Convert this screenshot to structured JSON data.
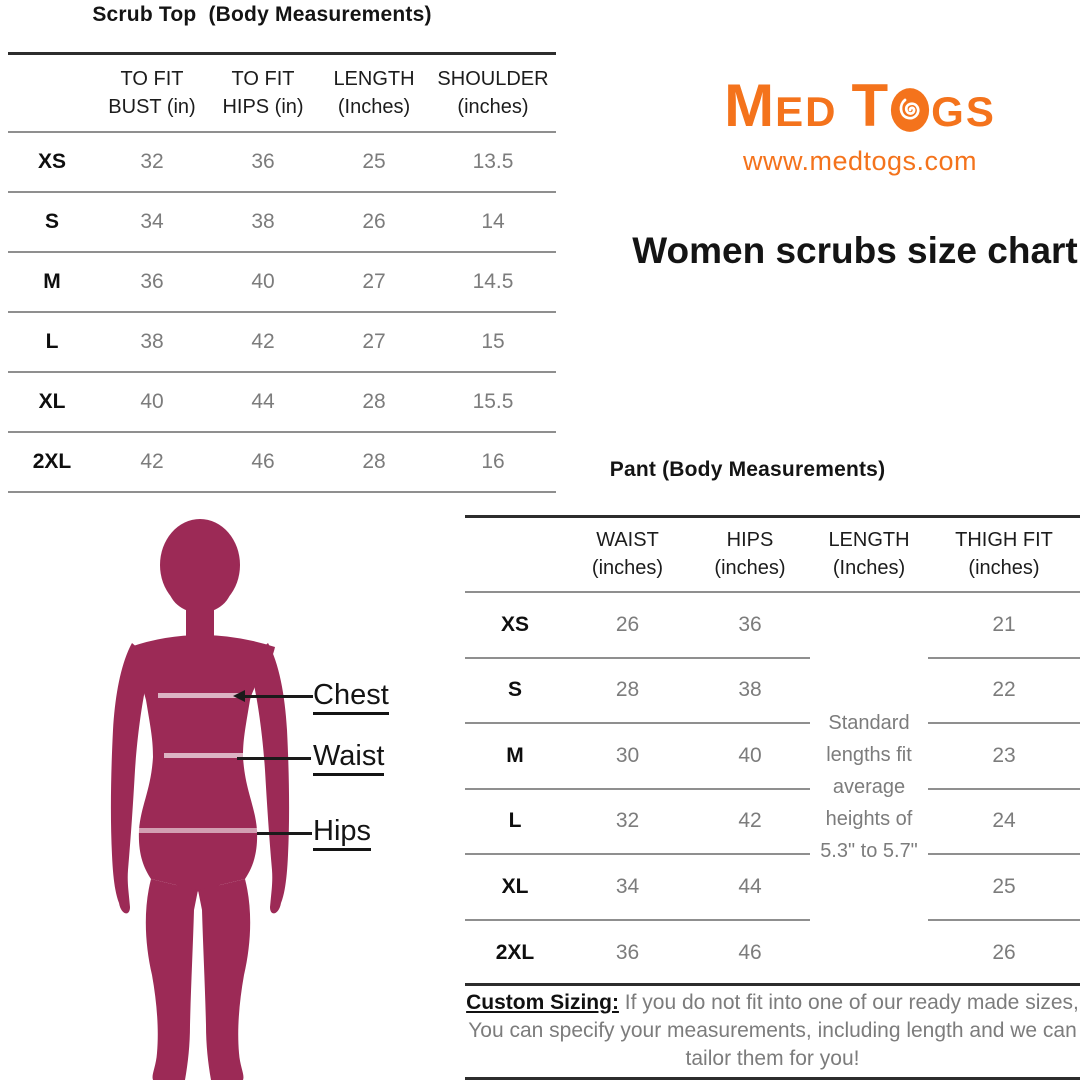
{
  "brand": {
    "m": "M",
    "ed": "ED",
    "t": "T",
    "gs": "GS",
    "url": "www.medtogs.com",
    "orange": "#F4731C"
  },
  "heading": "Women scrubs size chart",
  "scrub_top": {
    "title": "Scrub Top  (Body Measurements)",
    "headers": [
      [
        "TO FIT",
        "BUST (in)"
      ],
      [
        "TO FIT",
        "HIPS (in)"
      ],
      [
        "LENGTH",
        "(Inches)"
      ],
      [
        "SHOULDER",
        "(inches)"
      ]
    ],
    "rows": [
      {
        "size": "XS",
        "values": [
          "32",
          "36",
          "25",
          "13.5"
        ]
      },
      {
        "size": "S",
        "values": [
          "34",
          "38",
          "26",
          "14"
        ]
      },
      {
        "size": "M",
        "values": [
          "36",
          "40",
          "27",
          "14.5"
        ]
      },
      {
        "size": "L",
        "values": [
          "38",
          "42",
          "27",
          "15"
        ]
      },
      {
        "size": "XL",
        "values": [
          "40",
          "44",
          "28",
          "15.5"
        ]
      },
      {
        "size": "2XL",
        "values": [
          "42",
          "46",
          "28",
          "16"
        ]
      }
    ]
  },
  "pant": {
    "title": "Pant (Body Measurements)",
    "headers": [
      [
        "WAIST",
        "(inches)"
      ],
      [
        "HIPS",
        "(inches)"
      ],
      [
        "LENGTH",
        "(Inches)"
      ],
      [
        "THIGH FIT",
        "(inches)"
      ]
    ],
    "rows": [
      {
        "size": "XS",
        "waist": "26",
        "hips": "36",
        "thigh": "21"
      },
      {
        "size": "S",
        "waist": "28",
        "hips": "38",
        "thigh": "22"
      },
      {
        "size": "M",
        "waist": "30",
        "hips": "40",
        "thigh": "23"
      },
      {
        "size": "L",
        "waist": "32",
        "hips": "42",
        "thigh": "24"
      },
      {
        "size": "XL",
        "waist": "34",
        "hips": "44",
        "thigh": "25"
      },
      {
        "size": "2XL",
        "waist": "36",
        "hips": "46",
        "thigh": "26"
      }
    ],
    "length_note": "Standard lengths fit average heights of 5.3\" to 5.7\"",
    "footer_label": "Custom Sizing:",
    "footer_text": "If you do not fit into one of our ready made sizes, You can specify your measurements, including length and we can tailor them for you!"
  },
  "figure": {
    "silhouette_color": "#9C2A56",
    "labels": {
      "chest": "Chest",
      "waist": "Waist",
      "hips": "Hips"
    }
  }
}
